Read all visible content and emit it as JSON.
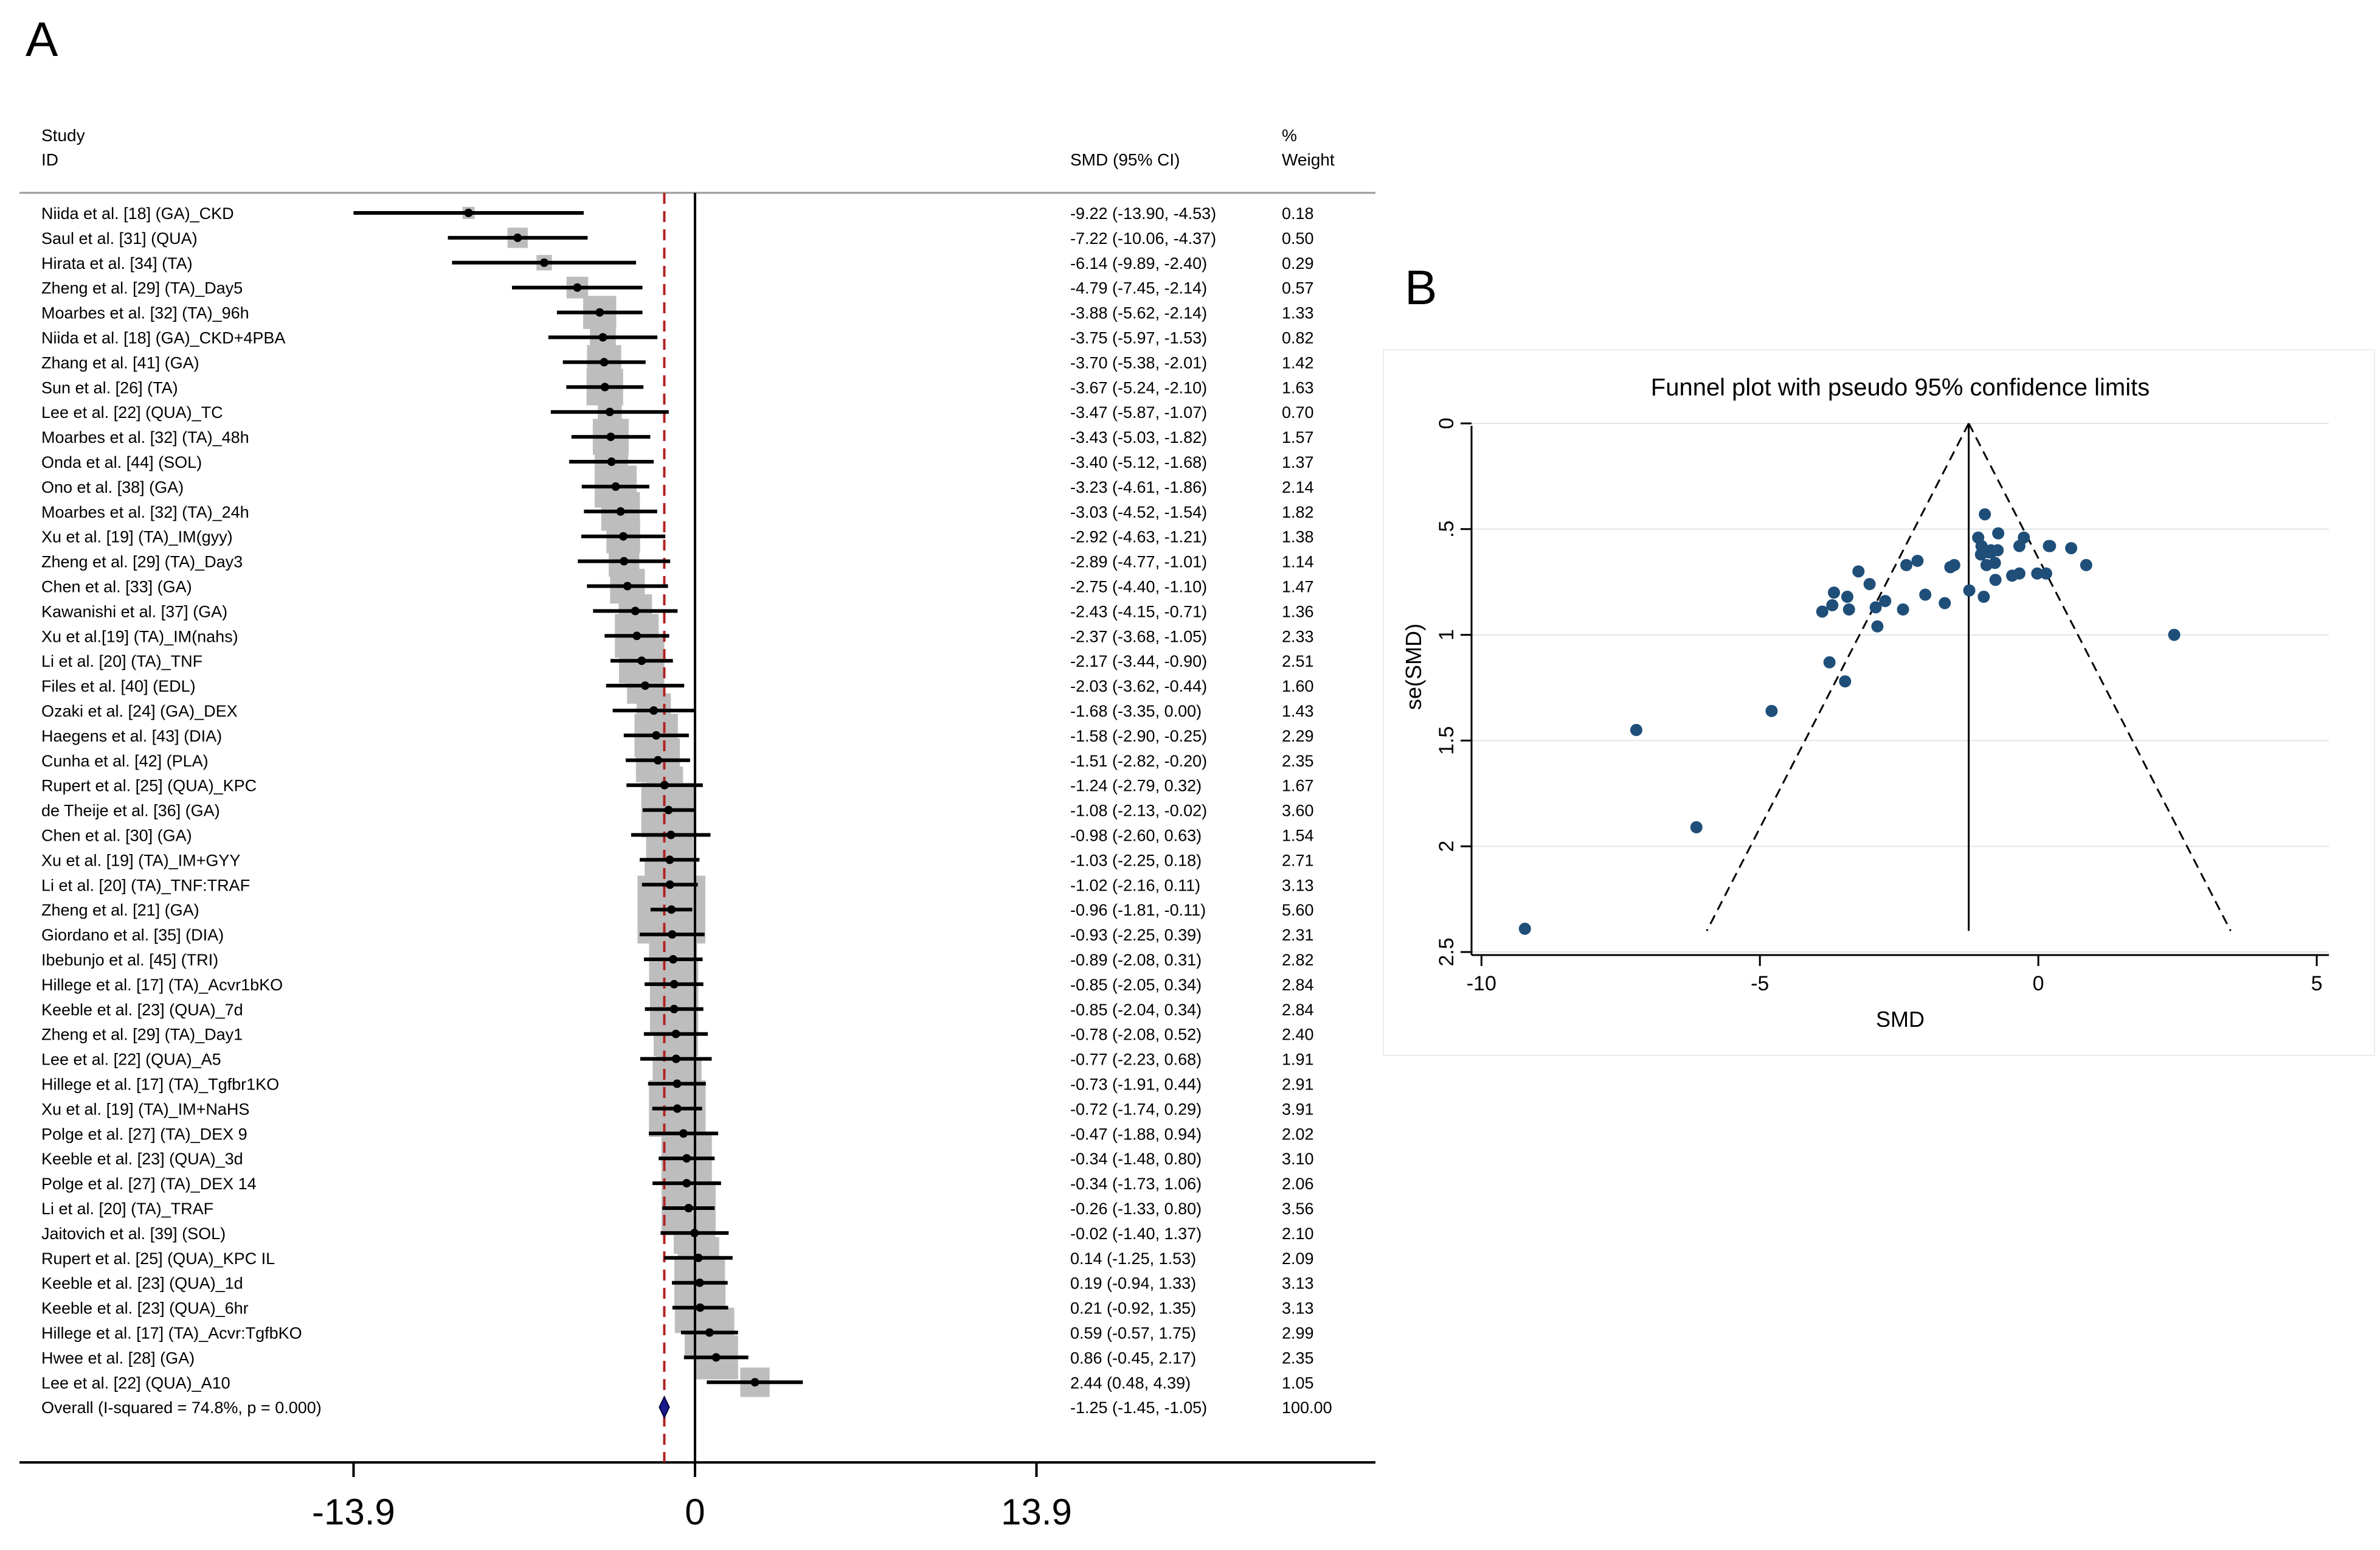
{
  "panel_a_label": "A",
  "panel_b_label": "B",
  "chart_data": [
    {
      "type": "forest",
      "headers": {
        "study_line1": "Study",
        "study_line2": "ID",
        "effect": "SMD (95% CI)",
        "weight_line1": "%",
        "weight_line2": "Weight"
      },
      "x_ticks": [
        {
          "value": -13.9,
          "label": "-13.9"
        },
        {
          "value": 0,
          "label": "0"
        },
        {
          "value": 13.9,
          "label": "13.9"
        }
      ],
      "x_range": [
        -27.5,
        27.7
      ],
      "pooled_reference_line": -1.25,
      "rows": [
        {
          "label": "Niida et al. [18] (GA)_CKD",
          "smd": -9.22,
          "lo": -13.9,
          "hi": -4.53,
          "ci": "-9.22 (-13.90, -4.53)",
          "weight": "0.18"
        },
        {
          "label": "Saul et al. [31] (QUA)",
          "smd": -7.22,
          "lo": -10.06,
          "hi": -4.37,
          "ci": "-7.22 (-10.06, -4.37)",
          "weight": "0.50"
        },
        {
          "label": "Hirata et al. [34] (TA)",
          "smd": -6.14,
          "lo": -9.89,
          "hi": -2.4,
          "ci": "-6.14 (-9.89, -2.40)",
          "weight": "0.29"
        },
        {
          "label": "Zheng et al. [29] (TA)_Day5",
          "smd": -4.79,
          "lo": -7.45,
          "hi": -2.14,
          "ci": "-4.79 (-7.45, -2.14)",
          "weight": "0.57"
        },
        {
          "label": "Moarbes et al. [32] (TA)_96h",
          "smd": -3.88,
          "lo": -5.62,
          "hi": -2.14,
          "ci": "-3.88 (-5.62, -2.14)",
          "weight": "1.33"
        },
        {
          "label": "Niida et al. [18] (GA)_CKD+4PBA",
          "smd": -3.75,
          "lo": -5.97,
          "hi": -1.53,
          "ci": "-3.75 (-5.97, -1.53)",
          "weight": "0.82"
        },
        {
          "label": "Zhang et al. [41] (GA)",
          "smd": -3.7,
          "lo": -5.38,
          "hi": -2.01,
          "ci": "-3.70 (-5.38, -2.01)",
          "weight": "1.42"
        },
        {
          "label": "Sun et al. [26] (TA)",
          "smd": -3.67,
          "lo": -5.24,
          "hi": -2.1,
          "ci": "-3.67 (-5.24, -2.10)",
          "weight": "1.63"
        },
        {
          "label": "Lee et al. [22] (QUA)_TC",
          "smd": -3.47,
          "lo": -5.87,
          "hi": -1.07,
          "ci": "-3.47 (-5.87, -1.07)",
          "weight": "0.70"
        },
        {
          "label": "Moarbes et al. [32] (TA)_48h",
          "smd": -3.43,
          "lo": -5.03,
          "hi": -1.82,
          "ci": "-3.43 (-5.03, -1.82)",
          "weight": "1.57"
        },
        {
          "label": "Onda et al. [44] (SOL)",
          "smd": -3.4,
          "lo": -5.12,
          "hi": -1.68,
          "ci": "-3.40 (-5.12, -1.68)",
          "weight": "1.37"
        },
        {
          "label": "Ono et al. [38] (GA)",
          "smd": -3.23,
          "lo": -4.61,
          "hi": -1.86,
          "ci": "-3.23 (-4.61, -1.86)",
          "weight": "2.14"
        },
        {
          "label": "Moarbes et al. [32] (TA)_24h",
          "smd": -3.03,
          "lo": -4.52,
          "hi": -1.54,
          "ci": "-3.03 (-4.52, -1.54)",
          "weight": "1.82"
        },
        {
          "label": "Xu et al. [19] (TA)_IM(gyy)",
          "smd": -2.92,
          "lo": -4.63,
          "hi": -1.21,
          "ci": "-2.92 (-4.63, -1.21)",
          "weight": "1.38"
        },
        {
          "label": "Zheng et al. [29] (TA)_Day3",
          "smd": -2.89,
          "lo": -4.77,
          "hi": -1.01,
          "ci": "-2.89 (-4.77, -1.01)",
          "weight": "1.14"
        },
        {
          "label": "Chen et al. [33] (GA)",
          "smd": -2.75,
          "lo": -4.4,
          "hi": -1.1,
          "ci": "-2.75 (-4.40, -1.10)",
          "weight": "1.47"
        },
        {
          "label": "Kawanishi et al. [37] (GA)",
          "smd": -2.43,
          "lo": -4.15,
          "hi": -0.71,
          "ci": "-2.43 (-4.15, -0.71)",
          "weight": "1.36"
        },
        {
          "label": "Xu et al.[19] (TA)_IM(nahs)",
          "smd": -2.37,
          "lo": -3.68,
          "hi": -1.05,
          "ci": "-2.37 (-3.68, -1.05)",
          "weight": "2.33"
        },
        {
          "label": "Li et al. [20] (TA)_TNF",
          "smd": -2.17,
          "lo": -3.44,
          "hi": -0.9,
          "ci": "-2.17 (-3.44, -0.90)",
          "weight": "2.51"
        },
        {
          "label": "Files et al. [40] (EDL)",
          "smd": -2.03,
          "lo": -3.62,
          "hi": -0.44,
          "ci": "-2.03 (-3.62, -0.44)",
          "weight": "1.60"
        },
        {
          "label": "Ozaki et al. [24] (GA)_DEX",
          "smd": -1.68,
          "lo": -3.35,
          "hi": 0.0,
          "ci": "-1.68 (-3.35, 0.00)",
          "weight": "1.43"
        },
        {
          "label": "Haegens et al. [43] (DIA)",
          "smd": -1.58,
          "lo": -2.9,
          "hi": -0.25,
          "ci": "-1.58 (-2.90, -0.25)",
          "weight": "2.29"
        },
        {
          "label": "Cunha et al. [42] (PLA)",
          "smd": -1.51,
          "lo": -2.82,
          "hi": -0.2,
          "ci": "-1.51 (-2.82, -0.20)",
          "weight": "2.35"
        },
        {
          "label": "Rupert et al. [25] (QUA)_KPC",
          "smd": -1.24,
          "lo": -2.79,
          "hi": 0.32,
          "ci": "-1.24 (-2.79, 0.32)",
          "weight": "1.67"
        },
        {
          "label": "de Theije et al. [36] (GA)",
          "smd": -1.08,
          "lo": -2.13,
          "hi": -0.02,
          "ci": "-1.08 (-2.13, -0.02)",
          "weight": "3.60"
        },
        {
          "label": "Chen et al. [30] (GA)",
          "smd": -0.98,
          "lo": -2.6,
          "hi": 0.63,
          "ci": "-0.98 (-2.60, 0.63)",
          "weight": "1.54"
        },
        {
          "label": "Xu et al. [19] (TA)_IM+GYY",
          "smd": -1.03,
          "lo": -2.25,
          "hi": 0.18,
          "ci": "-1.03 (-2.25, 0.18)",
          "weight": "2.71"
        },
        {
          "label": "Li et al. [20] (TA)_TNF:TRAF",
          "smd": -1.02,
          "lo": -2.16,
          "hi": 0.11,
          "ci": "-1.02 (-2.16, 0.11)",
          "weight": "3.13"
        },
        {
          "label": "Zheng et al. [21] (GA)",
          "smd": -0.96,
          "lo": -1.81,
          "hi": -0.11,
          "ci": "-0.96 (-1.81, -0.11)",
          "weight": "5.60"
        },
        {
          "label": "Giordano et al. [35] (DIA)",
          "smd": -0.93,
          "lo": -2.25,
          "hi": 0.39,
          "ci": "-0.93 (-2.25, 0.39)",
          "weight": "2.31"
        },
        {
          "label": "Ibebunjo et al. [45] (TRI)",
          "smd": -0.89,
          "lo": -2.08,
          "hi": 0.31,
          "ci": "-0.89 (-2.08, 0.31)",
          "weight": "2.82"
        },
        {
          "label": "Hillege et al. [17] (TA)_Acvr1bKO",
          "smd": -0.85,
          "lo": -2.05,
          "hi": 0.34,
          "ci": "-0.85 (-2.05, 0.34)",
          "weight": "2.84"
        },
        {
          "label": "Keeble et al. [23] (QUA)_7d",
          "smd": -0.85,
          "lo": -2.04,
          "hi": 0.34,
          "ci": "-0.85 (-2.04, 0.34)",
          "weight": "2.84"
        },
        {
          "label": "Zheng et al. [29] (TA)_Day1",
          "smd": -0.78,
          "lo": -2.08,
          "hi": 0.52,
          "ci": "-0.78 (-2.08, 0.52)",
          "weight": "2.40"
        },
        {
          "label": "Lee et al. [22] (QUA)_A5",
          "smd": -0.77,
          "lo": -2.23,
          "hi": 0.68,
          "ci": "-0.77 (-2.23, 0.68)",
          "weight": "1.91"
        },
        {
          "label": "Hillege et al. [17] (TA)_Tgfbr1KO",
          "smd": -0.73,
          "lo": -1.91,
          "hi": 0.44,
          "ci": "-0.73 (-1.91, 0.44)",
          "weight": "2.91"
        },
        {
          "label": "Xu et al. [19] (TA)_IM+NaHS",
          "smd": -0.72,
          "lo": -1.74,
          "hi": 0.29,
          "ci": "-0.72 (-1.74, 0.29)",
          "weight": "3.91"
        },
        {
          "label": "Polge et al. [27] (TA)_DEX 9",
          "smd": -0.47,
          "lo": -1.88,
          "hi": 0.94,
          "ci": "-0.47 (-1.88, 0.94)",
          "weight": "2.02"
        },
        {
          "label": "Keeble et al. [23] (QUA)_3d",
          "smd": -0.34,
          "lo": -1.48,
          "hi": 0.8,
          "ci": "-0.34 (-1.48, 0.80)",
          "weight": "3.10"
        },
        {
          "label": "Polge et al. [27] (TA)_DEX 14",
          "smd": -0.34,
          "lo": -1.73,
          "hi": 1.06,
          "ci": "-0.34 (-1.73, 1.06)",
          "weight": "2.06"
        },
        {
          "label": "Li et al. [20] (TA)_TRAF",
          "smd": -0.26,
          "lo": -1.33,
          "hi": 0.8,
          "ci": "-0.26 (-1.33, 0.80)",
          "weight": "3.56"
        },
        {
          "label": "Jaitovich et al. [39] (SOL)",
          "smd": -0.02,
          "lo": -1.4,
          "hi": 1.37,
          "ci": "-0.02 (-1.40, 1.37)",
          "weight": "2.10"
        },
        {
          "label": "Rupert et al. [25] (QUA)_KPC IL",
          "smd": 0.14,
          "lo": -1.25,
          "hi": 1.53,
          "ci": "0.14 (-1.25, 1.53)",
          "weight": "2.09"
        },
        {
          "label": "Keeble et al. [23] (QUA)_1d",
          "smd": 0.19,
          "lo": -0.94,
          "hi": 1.33,
          "ci": "0.19 (-0.94, 1.33)",
          "weight": "3.13"
        },
        {
          "label": "Keeble et al. [23] (QUA)_6hr",
          "smd": 0.21,
          "lo": -0.92,
          "hi": 1.35,
          "ci": "0.21 (-0.92, 1.35)",
          "weight": "3.13"
        },
        {
          "label": "Hillege et al. [17] (TA)_Acvr:TgfbKO",
          "smd": 0.59,
          "lo": -0.57,
          "hi": 1.75,
          "ci": "0.59 (-0.57, 1.75)",
          "weight": "2.99"
        },
        {
          "label": "Hwee et al. [28] (GA)",
          "smd": 0.86,
          "lo": -0.45,
          "hi": 2.17,
          "ci": "0.86 (-0.45, 2.17)",
          "weight": "2.35"
        },
        {
          "label": "Lee et al. [22] (QUA)_A10",
          "smd": 2.44,
          "lo": 0.48,
          "hi": 4.39,
          "ci": "2.44 (0.48, 4.39)",
          "weight": "1.05"
        }
      ],
      "overall": {
        "label": "Overall  (I-squared = 74.8%, p = 0.000)",
        "smd": -1.25,
        "lo": -1.45,
        "hi": -1.05,
        "ci": "-1.25 (-1.45, -1.05)",
        "weight": "100.00"
      }
    },
    {
      "type": "scatter",
      "title": "Funnel plot with pseudo 95% confidence limits",
      "xlabel": "SMD",
      "ylabel": "se(SMD)",
      "xlim": [
        -10.2,
        5.0
      ],
      "ylim": [
        0,
        2.5
      ],
      "y_reversed": true,
      "x_ticks": [
        {
          "value": -10,
          "label": "-10"
        },
        {
          "value": -5,
          "label": "-5"
        },
        {
          "value": 0,
          "label": "0"
        },
        {
          "value": 5,
          "label": "5"
        }
      ],
      "y_ticks": [
        {
          "value": 0,
          "label": "0"
        },
        {
          "value": 0.5,
          "label": ".5"
        },
        {
          "value": 1,
          "label": "1"
        },
        {
          "value": 1.5,
          "label": "1.5"
        },
        {
          "value": 2,
          "label": "2"
        },
        {
          "value": 2.5,
          "label": "2.5"
        }
      ],
      "pooled": -1.25,
      "funnel_se_max": 2.4,
      "point_color": "#1f4e79",
      "points": [
        {
          "x": -9.22,
          "y": 2.39
        },
        {
          "x": -7.22,
          "y": 1.45
        },
        {
          "x": -6.14,
          "y": 1.91
        },
        {
          "x": -4.79,
          "y": 1.36
        },
        {
          "x": -3.88,
          "y": 0.89
        },
        {
          "x": -3.75,
          "y": 1.13
        },
        {
          "x": -3.7,
          "y": 0.86
        },
        {
          "x": -3.67,
          "y": 0.8
        },
        {
          "x": -3.47,
          "y": 1.22
        },
        {
          "x": -3.43,
          "y": 0.82
        },
        {
          "x": -3.4,
          "y": 0.88
        },
        {
          "x": -3.23,
          "y": 0.7
        },
        {
          "x": -3.03,
          "y": 0.76
        },
        {
          "x": -2.92,
          "y": 0.87
        },
        {
          "x": -2.89,
          "y": 0.96
        },
        {
          "x": -2.75,
          "y": 0.84
        },
        {
          "x": -2.43,
          "y": 0.88
        },
        {
          "x": -2.37,
          "y": 0.67
        },
        {
          "x": -2.17,
          "y": 0.65
        },
        {
          "x": -2.03,
          "y": 0.81
        },
        {
          "x": -1.68,
          "y": 0.85
        },
        {
          "x": -1.58,
          "y": 0.68
        },
        {
          "x": -1.51,
          "y": 0.67
        },
        {
          "x": -1.24,
          "y": 0.79
        },
        {
          "x": -1.08,
          "y": 0.54
        },
        {
          "x": -0.98,
          "y": 0.82
        },
        {
          "x": -1.03,
          "y": 0.62
        },
        {
          "x": -1.02,
          "y": 0.58
        },
        {
          "x": -0.96,
          "y": 0.43
        },
        {
          "x": -0.93,
          "y": 0.67
        },
        {
          "x": -0.89,
          "y": 0.61
        },
        {
          "x": -0.85,
          "y": 0.61
        },
        {
          "x": -0.85,
          "y": 0.6
        },
        {
          "x": -0.78,
          "y": 0.66
        },
        {
          "x": -0.77,
          "y": 0.74
        },
        {
          "x": -0.73,
          "y": 0.6
        },
        {
          "x": -0.72,
          "y": 0.52
        },
        {
          "x": -0.47,
          "y": 0.72
        },
        {
          "x": -0.34,
          "y": 0.58
        },
        {
          "x": -0.34,
          "y": 0.71
        },
        {
          "x": -0.26,
          "y": 0.54
        },
        {
          "x": -0.02,
          "y": 0.71
        },
        {
          "x": 0.14,
          "y": 0.71
        },
        {
          "x": 0.19,
          "y": 0.58
        },
        {
          "x": 0.21,
          "y": 0.58
        },
        {
          "x": 0.59,
          "y": 0.59
        },
        {
          "x": 0.86,
          "y": 0.67
        },
        {
          "x": 2.44,
          "y": 1.0
        }
      ]
    }
  ]
}
